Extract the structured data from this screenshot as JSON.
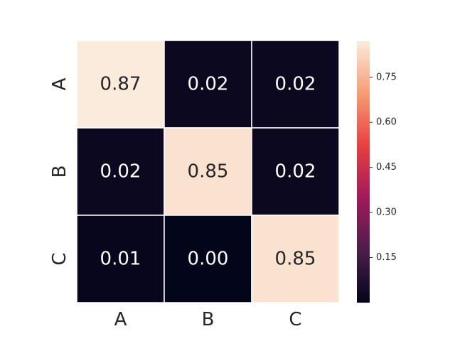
{
  "chart_data": {
    "type": "heatmap",
    "x_categories": [
      "A",
      "B",
      "C"
    ],
    "y_categories": [
      "A",
      "B",
      "C"
    ],
    "values": [
      [
        0.87,
        0.02,
        0.02
      ],
      [
        0.02,
        0.85,
        0.02
      ],
      [
        0.01,
        0.0,
        0.85
      ]
    ],
    "cell_labels": [
      [
        "0.87",
        "0.02",
        "0.02"
      ],
      [
        "0.02",
        "0.85",
        "0.02"
      ],
      [
        "0.01",
        "0.00",
        "0.85"
      ]
    ],
    "colorbar": {
      "range": [
        0.0,
        0.87
      ],
      "ticks": [
        0.15,
        0.3,
        0.45,
        0.6,
        0.75
      ],
      "tick_labels": [
        "0.15",
        "0.30",
        "0.45",
        "0.60",
        "0.75"
      ],
      "colormap": "rocket",
      "colors": [
        "#03051a",
        "#4c1d4b",
        "#a11a5b",
        "#e83f3f",
        "#f69c73",
        "#faebdd"
      ]
    },
    "title": "",
    "xlabel": "",
    "ylabel": "",
    "grid": false,
    "legend": "colorbar-right"
  }
}
